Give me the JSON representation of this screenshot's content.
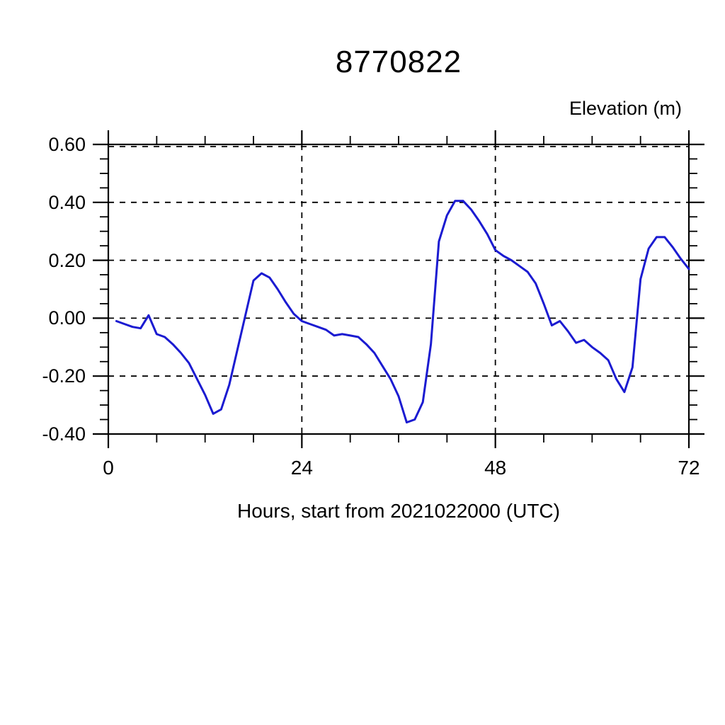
{
  "chart_data": {
    "type": "line",
    "title": "8770822",
    "y_axis_title": "Elevation (m)",
    "xlabel": "Hours, start from 2021022000 (UTC)",
    "xlim": [
      0,
      72
    ],
    "ylim": [
      -0.4,
      0.6
    ],
    "x_major_ticks": [
      0,
      24,
      48,
      72
    ],
    "x_tick_labels": [
      "0",
      "24",
      "48",
      "72"
    ],
    "x_minor_step": 6,
    "y_major_ticks": [
      0.6,
      0.4,
      0.2,
      0.0,
      -0.2,
      -0.4
    ],
    "y_tick_labels": [
      "0.60",
      "0.40",
      "0.20",
      "0.00",
      "-0.20",
      "-0.40"
    ],
    "y_minor_step": 0.05,
    "x_gridlines": [
      24,
      48
    ],
    "y_gridlines": [
      0.6,
      0.4,
      0.2,
      0.0,
      -0.2
    ],
    "grid_style": "dashed",
    "legend": "none",
    "line_color": "#1b1bd1",
    "axis_color": "#000000",
    "background_color": "#ffffff",
    "series": [
      {
        "name": "elevation",
        "x": [
          1,
          2,
          3,
          4,
          5,
          6,
          7,
          8,
          9,
          10,
          11,
          12,
          13,
          14,
          15,
          16,
          17,
          18,
          19,
          20,
          21,
          22,
          23,
          24,
          25,
          26,
          27,
          28,
          29,
          30,
          31,
          32,
          33,
          34,
          35,
          36,
          37,
          38,
          39,
          40,
          41,
          42,
          43,
          44,
          45,
          46,
          47,
          48,
          49,
          50,
          51,
          52,
          53,
          54,
          55,
          56,
          57,
          58,
          59,
          60,
          61,
          62,
          63,
          64,
          65,
          66,
          67,
          68,
          69,
          70,
          71,
          72
        ],
        "values": [
          -0.01,
          -0.02,
          -0.03,
          -0.035,
          0.01,
          -0.055,
          -0.065,
          -0.09,
          -0.12,
          -0.155,
          -0.21,
          -0.265,
          -0.33,
          -0.315,
          -0.23,
          -0.11,
          0.01,
          0.13,
          0.155,
          0.14,
          0.1,
          0.055,
          0.015,
          -0.01,
          -0.02,
          -0.03,
          -0.04,
          -0.06,
          -0.055,
          -0.06,
          -0.065,
          -0.09,
          -0.12,
          -0.165,
          -0.21,
          -0.27,
          -0.36,
          -0.35,
          -0.29,
          -0.09,
          0.265,
          0.355,
          0.405,
          0.405,
          0.375,
          0.335,
          0.29,
          0.235,
          0.215,
          0.2,
          0.18,
          0.16,
          0.12,
          0.05,
          -0.025,
          -0.01,
          -0.045,
          -0.085,
          -0.075,
          -0.1,
          -0.12,
          -0.145,
          -0.21,
          -0.255,
          -0.17,
          0.135,
          0.24,
          0.28,
          0.28,
          0.245,
          0.205,
          0.17
        ]
      }
    ]
  }
}
